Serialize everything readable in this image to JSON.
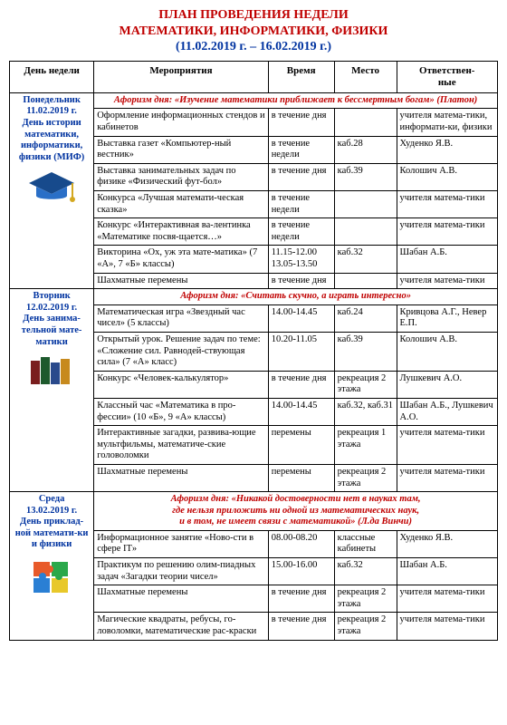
{
  "title": {
    "line1": "ПЛАН ПРОВЕДЕНИЯ НЕДЕЛИ",
    "line2": "МАТЕМАТИКИ, ИНФОРМАТИКИ, ФИЗИКИ",
    "dates": "(11.02.2019 г. – 16.02.2019 г.)"
  },
  "headers": {
    "day": "День недели",
    "event": "Мероприятия",
    "time": "Время",
    "place": "Место",
    "responsible": "Ответствен-\nные"
  },
  "colors": {
    "accent_red": "#c00000",
    "accent_blue": "#0033a0",
    "border": "#000000",
    "background": "#ffffff"
  },
  "days": {
    "mon": {
      "header": "Понедельник\n11.02.2019 г.\nДень истории математики, информатики, физики (МИФ)",
      "aphorism": "Афоризм дня: «Изучение математики приближает к бессмертным богам» (Платон)",
      "rows": [
        {
          "ev": "Оформление информационных стендов и кабинетов",
          "tm": "в течение дня",
          "pl": "",
          "rs": "учителя матема-тики, информати-ки, физики"
        },
        {
          "ev": "Выставка газет «Компьютер-ный вестник»",
          "tm": "в течение недели",
          "pl": "каб.28",
          "rs": "Худенко Я.В."
        },
        {
          "ev": "Выставка занимательных задач по физике «Физический фут-бол»",
          "tm": "в течение дня",
          "pl": "каб.39",
          "rs": "Колошич А.В."
        },
        {
          "ev": "Конкурса «Лучшая математи-ческая сказка»",
          "tm": "в течение недели",
          "pl": "",
          "rs": "учителя матема-тики"
        },
        {
          "ev": "Конкурс «Интерактивная ва-лентинка «Математике посвя-щается…»",
          "tm": "в течение недели",
          "pl": "",
          "rs": "учителя матема-тики"
        },
        {
          "ev": "Викторина «Ох, уж эта мате-матика» (7 «А», 7 «Б» классы)",
          "tm": "11.15-12.00\n13.05-13.50",
          "pl": "каб.32",
          "rs": "Шабан А.Б."
        },
        {
          "ev": "Шахматные перемены",
          "tm": "в течение дня",
          "pl": "",
          "rs": "учителя матема-тики"
        }
      ]
    },
    "tue": {
      "header": "Вторник\n12.02.2019 г.\nДень занима-тельной мате-матики",
      "aphorism": "Афоризм дня: «Считать скучно, а играть интересно»",
      "rows": [
        {
          "ev": "Математическая игра «Звездный час чисел» (5 классы)",
          "tm": "14.00-14.45",
          "pl": "каб.24",
          "rs": "Кривцова А.Г., Невер Е.П."
        },
        {
          "ev": "Открытый урок. Решение задач по теме: «Сложение сил. Равнодей-ствующая сила» (7 «А» класс)",
          "tm": "10.20-11.05",
          "pl": "каб.39",
          "rs": "Колошич А.В."
        },
        {
          "ev": "Конкурс «Человек-калькулятор»",
          "tm": "в течение дня",
          "pl": "рекреация 2 этажа",
          "rs": "Лушкевич А.О."
        },
        {
          "ev": "Классный час «Математика в про-фессии» (10 «Б», 9 «А» классы)",
          "tm": "14.00-14.45",
          "pl": "каб.32, каб.31",
          "rs": "Шабан А.Б., Лушкевич А.О."
        },
        {
          "ev": "Интерактивные загадки, развива-ющие мультфильмы, математиче-ские головоломки",
          "tm": "перемены",
          "pl": "рекреация 1 этажа",
          "rs": "учителя матема-тики"
        },
        {
          "ev": "Шахматные перемены",
          "tm": "перемены",
          "pl": "рекреация 2 этажа",
          "rs": "учителя матема-тики"
        }
      ]
    },
    "wed": {
      "header": "Среда\n13.02.2019 г.\nДень приклад-ной математи-ки и физики",
      "aphorism": "Афоризм дня: «Никакой достоверности нет в науках там,\nгде нельзя приложить ни одной из математических наук,\nи в том, не имеет связи с математикой» (Л.да Винчи)",
      "rows": [
        {
          "ev": "Информационное занятие «Ново-сти в сфере IT»",
          "tm": "08.00-08.20",
          "pl": "классные кабинеты",
          "rs": "Худенко Я.В."
        },
        {
          "ev": "Практикум по решению олим-пиадных задач «Загадки теории чисел»",
          "tm": "15.00-16.00",
          "pl": "каб.32",
          "rs": "Шабан А.Б."
        },
        {
          "ev": "Шахматные перемены",
          "tm": "в течение дня",
          "pl": "рекреация 2 этажа",
          "rs": "учителя матема-тики"
        },
        {
          "ev": "Магические квадраты, ребусы, го-ловоломки, математические рас-краски",
          "tm": "в течение дня",
          "pl": "рекреация 2 этажа",
          "rs": "учителя матема-тики"
        }
      ]
    }
  }
}
